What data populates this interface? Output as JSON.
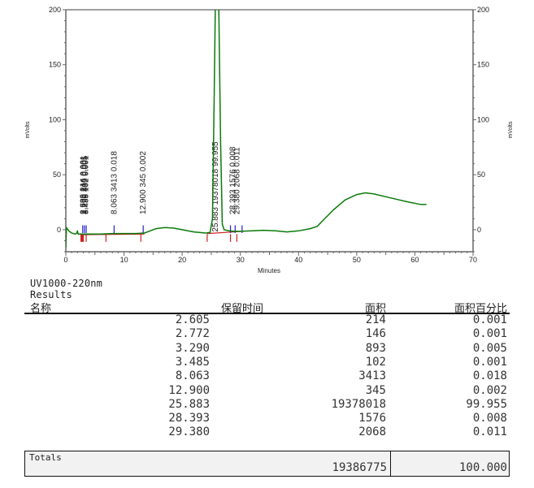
{
  "chart_data": {
    "type": "line",
    "title": "",
    "xlabel": "Minutes",
    "ylabel": "mVolts",
    "ylabel_right": "mVolts",
    "xlim": [
      0,
      70
    ],
    "ylim": [
      -20,
      200
    ],
    "x_ticks": [
      0,
      10,
      20,
      30,
      40,
      50,
      60,
      70
    ],
    "y_ticks": [
      0,
      50,
      100,
      150,
      200
    ],
    "grid": false,
    "trace_color": "#0a7a0a",
    "baseline_color": "#cc2222",
    "peak_marker_color": "#2222cc",
    "trace": [
      [
        0.0,
        -16
      ],
      [
        0.1,
        2
      ],
      [
        0.5,
        -1
      ],
      [
        1.0,
        -3
      ],
      [
        1.6,
        -4
      ],
      [
        1.9,
        -3
      ],
      [
        2.0,
        -1
      ],
      [
        2.1,
        -4
      ],
      [
        2.5,
        -4
      ],
      [
        3.0,
        -4
      ],
      [
        4.0,
        -4
      ],
      [
        6.0,
        -4
      ],
      [
        8.0,
        -3.5
      ],
      [
        10.0,
        -3.5
      ],
      [
        12.0,
        -3.5
      ],
      [
        13.5,
        -3
      ],
      [
        14.5,
        -1
      ],
      [
        15.5,
        1
      ],
      [
        17.0,
        2
      ],
      [
        18.5,
        1.5
      ],
      [
        20.0,
        0
      ],
      [
        22.0,
        -2
      ],
      [
        24.0,
        -3
      ],
      [
        24.8,
        -2.5
      ],
      [
        25.2,
        10
      ],
      [
        25.5,
        120
      ],
      [
        25.7,
        210
      ],
      [
        26.3,
        210
      ],
      [
        26.6,
        80
      ],
      [
        26.9,
        5
      ],
      [
        27.2,
        0
      ],
      [
        28.0,
        -1
      ],
      [
        29.0,
        -1.5
      ],
      [
        30.0,
        -1.5
      ],
      [
        32.0,
        -1
      ],
      [
        34.0,
        -0.5
      ],
      [
        36.0,
        -1
      ],
      [
        38.0,
        -2
      ],
      [
        40.0,
        -1
      ],
      [
        42.0,
        1
      ],
      [
        43.2,
        3
      ],
      [
        44.5,
        10
      ],
      [
        46.0,
        18
      ],
      [
        48.0,
        27
      ],
      [
        50.0,
        32
      ],
      [
        51.5,
        33.5
      ],
      [
        53.0,
        32.5
      ],
      [
        55.0,
        30
      ],
      [
        57.0,
        27.5
      ],
      [
        59.0,
        25
      ],
      [
        61.0,
        23
      ],
      [
        62.0,
        23
      ]
    ],
    "peaks": [
      {
        "rt": "2.605",
        "area": "214",
        "area_pct": "0.001"
      },
      {
        "rt": "2.772",
        "area": "146",
        "area_pct": "0.001"
      },
      {
        "rt": "3.290",
        "area": "893",
        "area_pct": "0.005"
      },
      {
        "rt": "3.485",
        "area": "102",
        "area_pct": "0.001"
      },
      {
        "rt": "8.063",
        "area": "3413",
        "area_pct": "0.018"
      },
      {
        "rt": "12.900",
        "area": "345",
        "area_pct": "0.002"
      },
      {
        "rt": "25.883",
        "area": "19378018",
        "area_pct": "99.955"
      },
      {
        "rt": "28.393",
        "area": "1576",
        "area_pct": "0.008"
      },
      {
        "rt": "29.380",
        "area": "2068",
        "area_pct": "0.011"
      }
    ],
    "peak_labels": [
      {
        "x": 3.0,
        "text": "2.605   214   0.001"
      },
      {
        "x": 3.1,
        "text": "2.772   146   0.001"
      },
      {
        "x": 3.3,
        "text": "3.290   893   0.005"
      },
      {
        "x": 3.4,
        "text": "3.485   102   0.001"
      },
      {
        "x": 8.3,
        "text": "8.063  3413  0.018"
      },
      {
        "x": 13.3,
        "text": "12.900  345  0.002"
      },
      {
        "x": 25.7,
        "text": "25.883  19378018  99.955"
      },
      {
        "x": 28.7,
        "text": "28.393   1576   0.008"
      },
      {
        "x": 29.4,
        "text": "29.380   2068   0.011"
      }
    ],
    "markers_blue": [
      2.9,
      3.2,
      3.5,
      8.3,
      13.3,
      28.3,
      29.1,
      30.3
    ],
    "markers_red": [
      2.6,
      2.7,
      2.8,
      2.9,
      3.0,
      3.5,
      6.9,
      12.9,
      24.3,
      28.3,
      29.4
    ],
    "baseline_segments": [
      [
        [
          2.5,
          -4.5
        ],
        [
          13.5,
          -4
        ]
      ],
      [
        [
          24.3,
          -3.5
        ],
        [
          30.4,
          -1.5
        ]
      ]
    ]
  },
  "report": {
    "detector": "UV1000-220nm",
    "section": "Results",
    "columns": {
      "name": "名称",
      "rt": "保留时间",
      "area": "面积",
      "area_pct": "面积百分比"
    },
    "rows": [
      {
        "rt": "2.605",
        "area": "214",
        "area_pct": "0.001"
      },
      {
        "rt": "2.772",
        "area": "146",
        "area_pct": "0.001"
      },
      {
        "rt": "3.290",
        "area": "893",
        "area_pct": "0.005"
      },
      {
        "rt": "3.485",
        "area": "102",
        "area_pct": "0.001"
      },
      {
        "rt": "8.063",
        "area": "3413",
        "area_pct": "0.018"
      },
      {
        "rt": "12.900",
        "area": "345",
        "area_pct": "0.002"
      },
      {
        "rt": "25.883",
        "area": "19378018",
        "area_pct": "99.955"
      },
      {
        "rt": "28.393",
        "area": "1576",
        "area_pct": "0.008"
      },
      {
        "rt": "29.380",
        "area": "2068",
        "area_pct": "0.011"
      }
    ],
    "totals": {
      "label": "Totals",
      "area": "19386775",
      "area_pct": "100.000"
    }
  }
}
